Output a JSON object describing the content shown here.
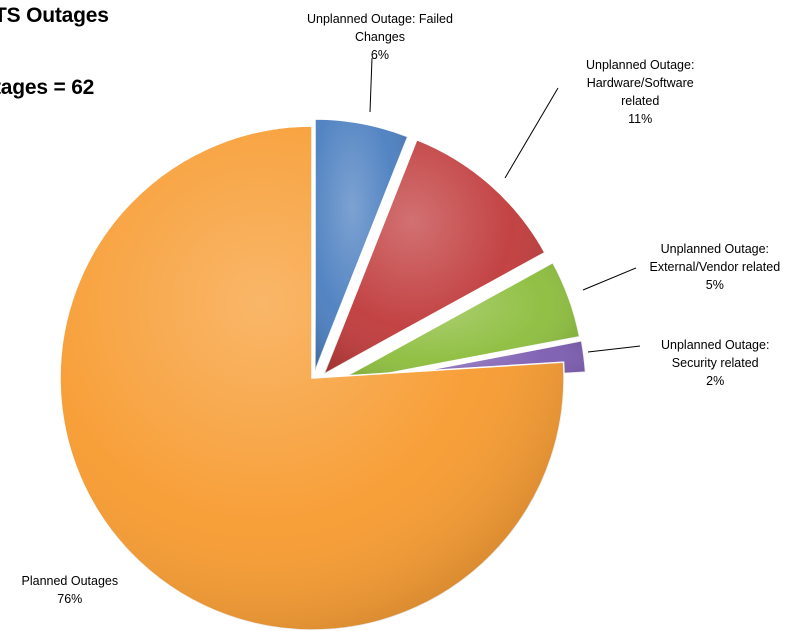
{
  "chart_data": {
    "type": "pie",
    "title_line1": "TS Outages",
    "title_line2": "tages = 62",
    "slices": [
      {
        "name": "Unplanned Outage: Failed Changes",
        "label_lines": [
          "Unplanned Outage: Failed",
          "Changes"
        ],
        "percent_label": "6%",
        "value": 6,
        "color": "#4a7ec0",
        "exploded": true
      },
      {
        "name": "Unplanned Outage: Hardware/Software related",
        "label_lines": [
          "Unplanned Outage:",
          "Hardware/Software",
          "related"
        ],
        "percent_label": "11%",
        "value": 11,
        "color": "#c0393a",
        "exploded": true
      },
      {
        "name": "Unplanned Outage: External/Vendor related",
        "label_lines": [
          "Unplanned Outage:",
          "External/Vendor related"
        ],
        "percent_label": "5%",
        "value": 5,
        "color": "#8cbd3c",
        "exploded": true
      },
      {
        "name": "Unplanned Outage: Security related",
        "label_lines": [
          "Unplanned Outage:",
          "Security related"
        ],
        "percent_label": "2%",
        "value": 2,
        "color": "#7b5bb0",
        "exploded": true
      },
      {
        "name": "Planned Outages",
        "label_lines": [
          "Planned Outages"
        ],
        "percent_label": "76%",
        "value": 76,
        "color": "#f79a2e",
        "exploded": false
      }
    ]
  }
}
